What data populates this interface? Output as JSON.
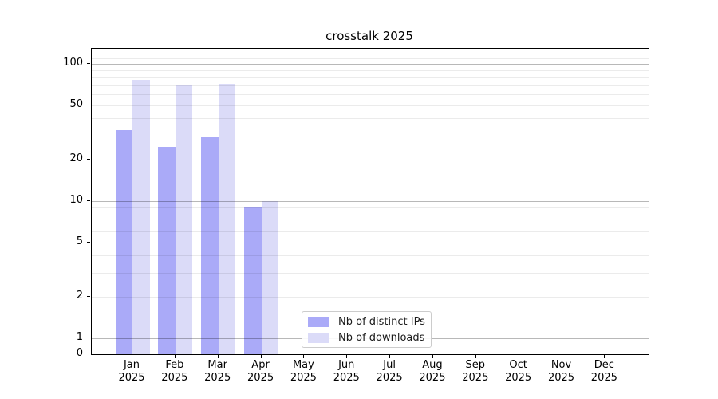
{
  "title": "crosstalk 2025",
  "chart_data": {
    "type": "bar",
    "title": "crosstalk 2025",
    "yscale": "symlog",
    "grid": "horizontal",
    "categories": [
      "Jan",
      "Feb",
      "Mar",
      "Apr",
      "May",
      "Jun",
      "Jul",
      "Aug",
      "Sep",
      "Oct",
      "Nov",
      "Dec"
    ],
    "x_year_label": "2025",
    "series": [
      {
        "name": "Nb of distinct IPs",
        "color": "#aaaaf8",
        "values": [
          33,
          25,
          29,
          9,
          null,
          null,
          null,
          null,
          null,
          null,
          null,
          null
        ]
      },
      {
        "name": "Nb of downloads",
        "color": "#dbdbf8",
        "values": [
          77,
          71,
          72,
          10,
          null,
          null,
          null,
          null,
          null,
          null,
          null,
          null
        ]
      }
    ],
    "y_ticks": [
      0,
      1,
      2,
      5,
      10,
      20,
      50,
      100
    ],
    "y_minor_ticks": [
      3,
      4,
      6,
      7,
      8,
      9,
      30,
      40,
      60,
      70,
      80,
      90,
      110,
      120
    ],
    "y_major_decades": [
      1,
      10,
      100
    ],
    "ylim": [
      0,
      130
    ],
    "xlabel": "",
    "ylabel": "",
    "legend_position": "bottom-center"
  },
  "colors": {
    "background": "#ffffff",
    "axis": "#000000",
    "grid_major": "rgba(0,0,0,0.28)",
    "grid_minor": "rgba(0,0,0,0.08)",
    "bar_ips": "#aaaaf8",
    "bar_downloads": "#dbdbf8"
  }
}
